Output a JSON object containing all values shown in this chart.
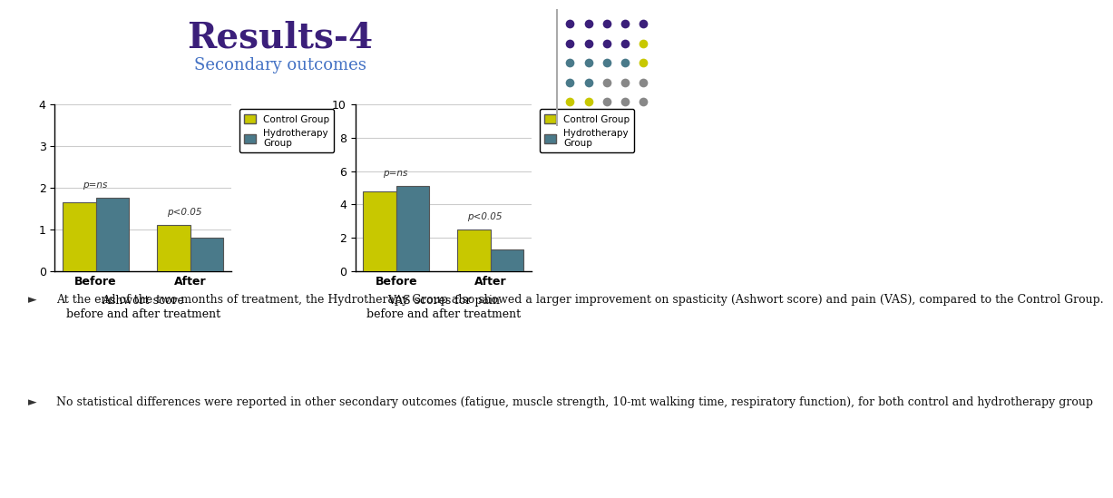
{
  "title": "Results-4",
  "subtitle": "Secondary outcomes",
  "title_color": "#3B1F7A",
  "subtitle_color": "#4472C4",
  "bg_color": "#FFFFFF",
  "chart1": {
    "categories": [
      "Before",
      "After"
    ],
    "control": [
      1.65,
      1.1
    ],
    "hydro": [
      1.75,
      0.8
    ],
    "ylim": [
      0,
      4
    ],
    "yticks": [
      0,
      1,
      2,
      3,
      4
    ],
    "xlabel_title": "Ashwort score\nbefore and after treatment",
    "p_before": "p=ns",
    "p_after": "p<0.05"
  },
  "chart2": {
    "categories": [
      "Before",
      "After"
    ],
    "control": [
      4.8,
      2.5
    ],
    "hydro": [
      5.1,
      1.3
    ],
    "ylim": [
      0,
      10
    ],
    "yticks": [
      0,
      2,
      4,
      6,
      8,
      10
    ],
    "xlabel_title": "VAS scores for pain\nbefore and after treatment",
    "p_before": "p=ns",
    "p_after": "p<0.05"
  },
  "control_color": "#C8C800",
  "hydro_color": "#4A7A8A",
  "bar_edge_color": "#555555",
  "bar_width": 0.35,
  "legend_control": "Control Group",
  "legend_hydro": "Hydrotherapy\nGroup",
  "bullet1": "At the end of the two months of treatment, the Hydrotherapy Group also showed a larger improvement on spasticity (Ashwort score) and pain (VAS), compared to the Control Group.",
  "bullet2": "No statistical differences were reported in other secondary outcomes (fatigue, muscle strength, 10-mt walking time, respiratory function), for both control and hydrotherapy group",
  "dot_colors_grid": [
    [
      "#3B1F7A",
      "#3B1F7A",
      "#3B1F7A",
      "#3B1F7A",
      "#3B1F7A"
    ],
    [
      "#3B1F7A",
      "#3B1F7A",
      "#3B1F7A",
      "#3B1F7A",
      "#C8C800"
    ],
    [
      "#4A7A8A",
      "#4A7A8A",
      "#4A7A8A",
      "#4A7A8A",
      "#C8C800"
    ],
    [
      "#4A7A8A",
      "#4A7A8A",
      "#888888",
      "#888888",
      "#888888"
    ],
    [
      "#C8C800",
      "#C8C800",
      "#888888",
      "#888888",
      "#888888"
    ]
  ]
}
